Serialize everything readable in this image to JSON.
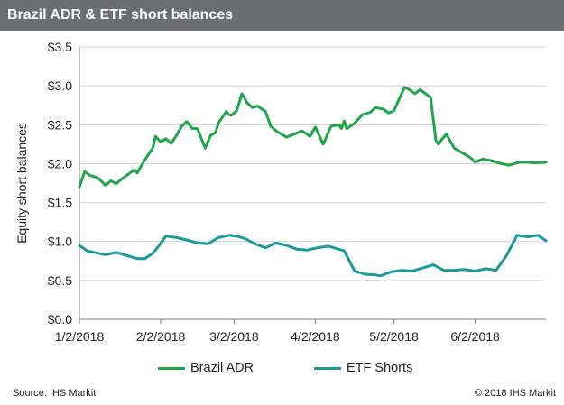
{
  "title": "Brazil ADR & ETF short balances",
  "source": "Source: IHS Markit",
  "copyright": "© 2018 IHS Markit",
  "colors": {
    "brazil_adr": "#1fa64b",
    "etf_shorts": "#1a9a9a",
    "title_bar": "#6d6e71"
  },
  "chart_data": {
    "type": "line",
    "title": "Brazil ADR & ETF short balances",
    "xlabel": "",
    "ylabel": "Equity short balances",
    "ylim": [
      0,
      3.5
    ],
    "yticks": [
      0,
      0.5,
      1.0,
      1.5,
      2.0,
      2.5,
      3.0,
      3.5
    ],
    "ytick_labels": [
      "$0.0",
      "$0.5",
      "$1.0",
      "$1.5",
      "$2.0",
      "$2.5",
      "$3.0",
      "$3.5"
    ],
    "xlim": [
      "2018-01-02",
      "2018-06-29"
    ],
    "xticks": [
      "2018-01-02",
      "2018-02-02",
      "2018-03-02",
      "2018-04-02",
      "2018-05-02",
      "2018-06-02"
    ],
    "xtick_labels": [
      "1/2/2018",
      "2/2/2018",
      "3/2/2018",
      "4/2/2018",
      "5/2/2018",
      "6/2/2018"
    ],
    "grid": "horizontal",
    "legend": "bottom",
    "series": [
      {
        "name": "Brazil ADR",
        "x": [
          "2018-01-02",
          "2018-01-04",
          "2018-01-06",
          "2018-01-09",
          "2018-01-12",
          "2018-01-14",
          "2018-01-16",
          "2018-01-18",
          "2018-01-20",
          "2018-01-23",
          "2018-01-24",
          "2018-01-27",
          "2018-01-30",
          "2018-01-31",
          "2018-02-02",
          "2018-02-04",
          "2018-02-06",
          "2018-02-08",
          "2018-02-10",
          "2018-02-12",
          "2018-02-14",
          "2018-02-16",
          "2018-02-19",
          "2018-02-21",
          "2018-02-23",
          "2018-02-24",
          "2018-02-27",
          "2018-02-28",
          "2018-03-01",
          "2018-03-03",
          "2018-03-05",
          "2018-03-07",
          "2018-03-09",
          "2018-03-11",
          "2018-03-14",
          "2018-03-16",
          "2018-03-17",
          "2018-03-19",
          "2018-03-22",
          "2018-03-25",
          "2018-03-28",
          "2018-03-31",
          "2018-04-02",
          "2018-04-05",
          "2018-04-08",
          "2018-04-11",
          "2018-04-12",
          "2018-04-13",
          "2018-04-14",
          "2018-04-17",
          "2018-04-20",
          "2018-04-23",
          "2018-04-25",
          "2018-04-28",
          "2018-04-30",
          "2018-05-02",
          "2018-05-06",
          "2018-05-08",
          "2018-05-10",
          "2018-05-12",
          "2018-05-16",
          "2018-05-18",
          "2018-05-19",
          "2018-05-20",
          "2018-05-22",
          "2018-05-25",
          "2018-05-28",
          "2018-05-31",
          "2018-06-02",
          "2018-06-05",
          "2018-06-08",
          "2018-06-12",
          "2018-06-15",
          "2018-06-19",
          "2018-06-22",
          "2018-06-25",
          "2018-06-29"
        ],
        "values": [
          1.7,
          1.9,
          1.85,
          1.82,
          1.72,
          1.78,
          1.74,
          1.8,
          1.85,
          1.92,
          1.88,
          2.05,
          2.2,
          2.35,
          2.28,
          2.32,
          2.26,
          2.36,
          2.48,
          2.54,
          2.45,
          2.45,
          2.2,
          2.36,
          2.4,
          2.52,
          2.67,
          2.63,
          2.62,
          2.68,
          2.9,
          2.78,
          2.72,
          2.74,
          2.67,
          2.48,
          2.45,
          2.4,
          2.34,
          2.38,
          2.42,
          2.35,
          2.47,
          2.25,
          2.48,
          2.5,
          2.45,
          2.55,
          2.45,
          2.52,
          2.63,
          2.66,
          2.72,
          2.7,
          2.65,
          2.68,
          2.98,
          2.95,
          2.9,
          2.95,
          2.85,
          2.3,
          2.25,
          2.3,
          2.38,
          2.2,
          2.14,
          2.08,
          2.02,
          2.06,
          2.04,
          2.0,
          1.98,
          2.02,
          2.02,
          2.01,
          2.02
        ]
      },
      {
        "name": "ETF Shorts",
        "x": [
          "2018-01-02",
          "2018-01-05",
          "2018-01-09",
          "2018-01-12",
          "2018-01-16",
          "2018-01-20",
          "2018-01-24",
          "2018-01-27",
          "2018-01-30",
          "2018-02-01",
          "2018-02-04",
          "2018-02-08",
          "2018-02-12",
          "2018-02-16",
          "2018-02-20",
          "2018-02-24",
          "2018-02-28",
          "2018-03-03",
          "2018-03-06",
          "2018-03-10",
          "2018-03-14",
          "2018-03-18",
          "2018-03-22",
          "2018-03-26",
          "2018-03-30",
          "2018-04-03",
          "2018-04-07",
          "2018-04-11",
          "2018-04-13",
          "2018-04-17",
          "2018-04-21",
          "2018-04-25",
          "2018-04-27",
          "2018-05-01",
          "2018-05-05",
          "2018-05-09",
          "2018-05-13",
          "2018-05-17",
          "2018-05-21",
          "2018-05-25",
          "2018-05-29",
          "2018-06-02",
          "2018-06-06",
          "2018-06-10",
          "2018-06-14",
          "2018-06-18",
          "2018-06-22",
          "2018-06-26",
          "2018-06-29"
        ],
        "values": [
          0.95,
          0.88,
          0.85,
          0.83,
          0.86,
          0.82,
          0.78,
          0.78,
          0.85,
          0.93,
          1.07,
          1.05,
          1.02,
          0.98,
          0.97,
          1.05,
          1.08,
          1.07,
          1.04,
          0.97,
          0.92,
          0.98,
          0.95,
          0.9,
          0.89,
          0.92,
          0.94,
          0.9,
          0.88,
          0.62,
          0.58,
          0.57,
          0.56,
          0.61,
          0.63,
          0.62,
          0.66,
          0.7,
          0.63,
          0.63,
          0.64,
          0.62,
          0.65,
          0.63,
          0.82,
          1.08,
          1.06,
          1.08,
          1.01
        ]
      }
    ]
  }
}
